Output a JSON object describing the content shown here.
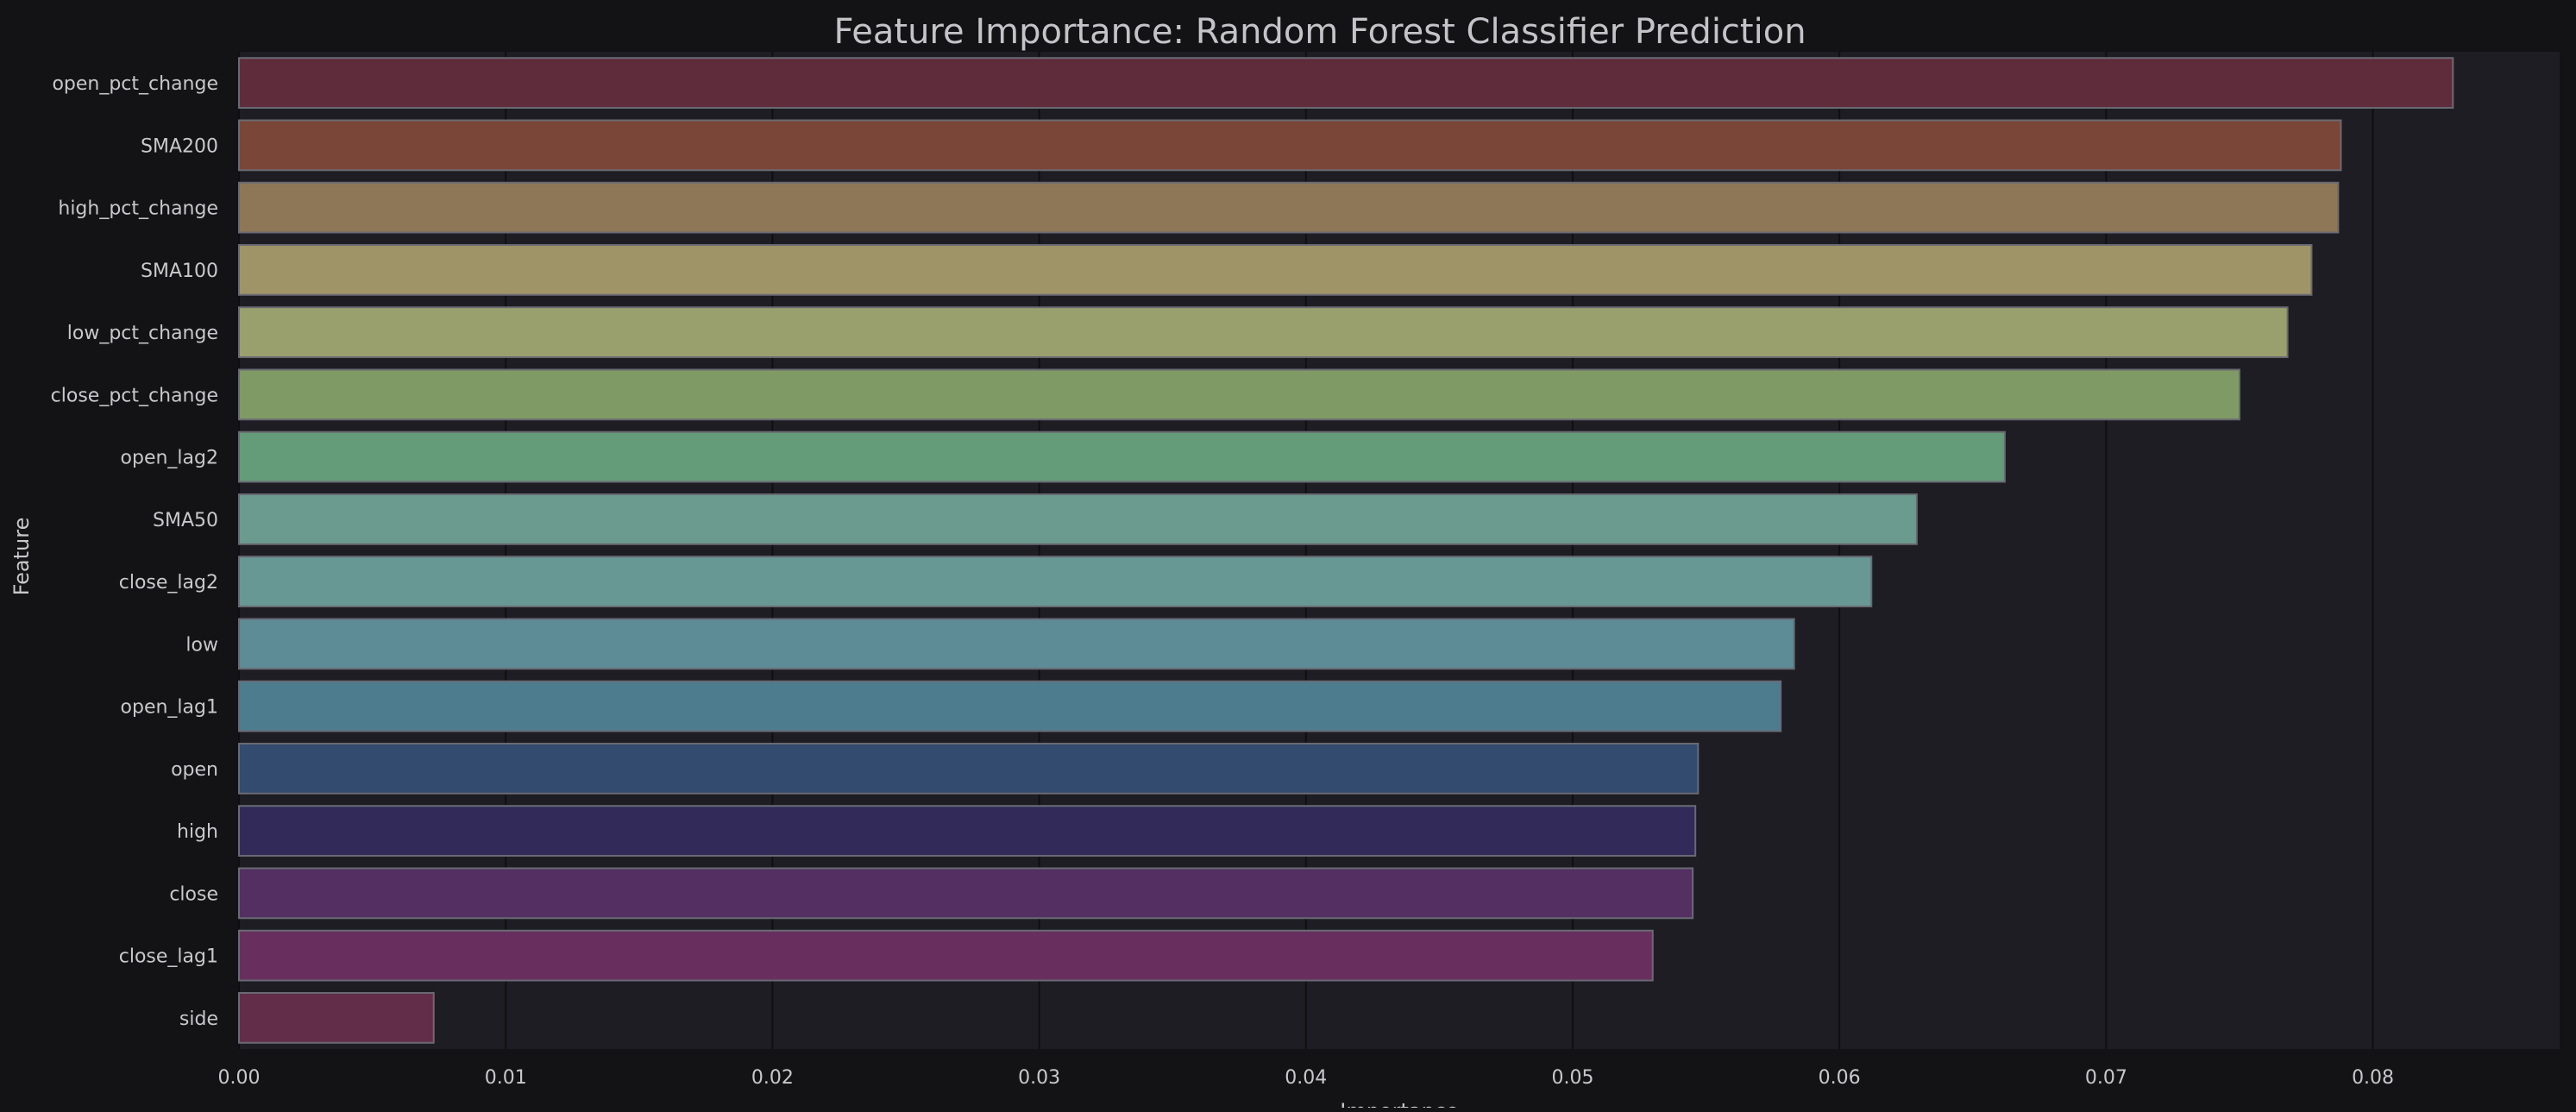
{
  "chart_data": {
    "type": "bar",
    "orientation": "horizontal",
    "title": "Feature Importance: Random Forest Classifier Prediction",
    "xlabel": "Importance",
    "ylabel": "Feature",
    "xlim": [
      0,
      0.087
    ],
    "xticks": [
      0.0,
      0.01,
      0.02,
      0.03,
      0.04,
      0.05,
      0.06,
      0.07,
      0.08
    ],
    "xtick_labels": [
      "0.00",
      "0.01",
      "0.02",
      "0.03",
      "0.04",
      "0.05",
      "0.06",
      "0.07",
      "0.08"
    ],
    "grid": true,
    "categories": [
      "open_pct_change",
      "SMA200",
      "high_pct_change",
      "SMA100",
      "low_pct_change",
      "close_pct_change",
      "open_lag2",
      "SMA50",
      "close_lag2",
      "low",
      "open_lag1",
      "open",
      "high",
      "close",
      "close_lag1",
      "side"
    ],
    "values": [
      0.083,
      0.0788,
      0.0787,
      0.0777,
      0.0768,
      0.075,
      0.0662,
      0.0629,
      0.0612,
      0.0583,
      0.0578,
      0.0547,
      0.0546,
      0.0545,
      0.053,
      0.0073
    ],
    "colors": [
      "#5f2c3c",
      "#7a4638",
      "#8e7756",
      "#9e9468",
      "#9aa06d",
      "#7f9a65",
      "#649b79",
      "#6a9b8e",
      "#679894",
      "#5e8c96",
      "#4d7c8f",
      "#334b6e",
      "#322b59",
      "#532f62",
      "#682f5e",
      "#622d48"
    ]
  }
}
